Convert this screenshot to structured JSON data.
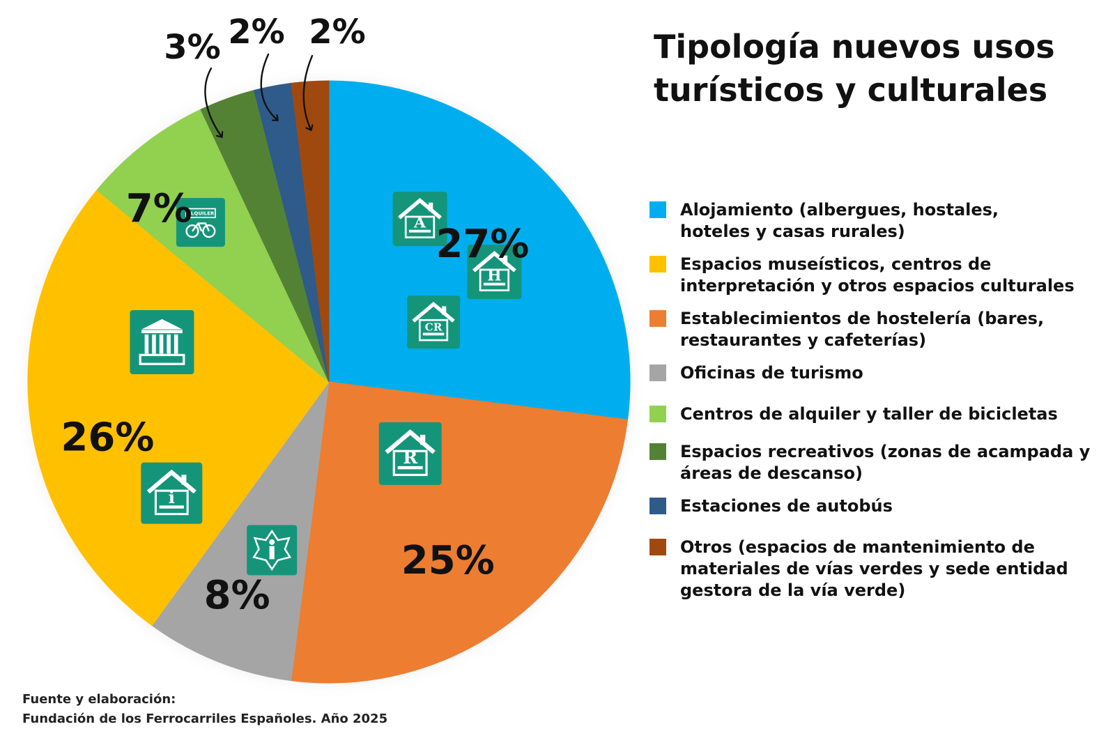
{
  "chart_data": {
    "type": "pie",
    "title": "Tipología nuevos usos turísticos y culturales",
    "title_lines": [
      "Tipología nuevos usos",
      "turísticos y culturales"
    ],
    "legend_position": "right",
    "slices": [
      {
        "label": "Alojamiento (albergues, hostales,\nhoteles y casas rurales)",
        "value": 27,
        "value_label": "27%",
        "color": "#00AEEF",
        "icons": [
          "albergue-icon",
          "casa-rural-icon",
          "hostal-icon"
        ]
      },
      {
        "label": "Establecimientos de hostelería (bares,\nrestaurantes y cafeterías)",
        "value": 25,
        "value_label": "25%",
        "color": "#ED7D31",
        "icons": [
          "restaurante-icon"
        ]
      },
      {
        "label": "Oficinas de turismo",
        "value": 8,
        "value_label": "8%",
        "color": "#A5A5A5",
        "icons": [
          "info-icon"
        ]
      },
      {
        "label": "Espacios museísticos, centros de\ninterpretación y otros espacios culturales",
        "value": 26,
        "value_label": "26%",
        "color": "#FFC000",
        "icons": [
          "museo-icon",
          "centro-interpretacion-icon"
        ]
      },
      {
        "label": "Centros de alquiler y taller de bicicletas",
        "value": 7,
        "value_label": "7%",
        "color": "#92D050",
        "icons": [
          "alquiler-bicicletas-icon"
        ],
        "icon_text": "ALQUILER"
      },
      {
        "label": "Espacios recreativos (zonas de acampada y\náreas de descanso)",
        "value": 3,
        "value_label": "3%",
        "color": "#548235",
        "icons": []
      },
      {
        "label": "Estaciones de autobús",
        "value": 2,
        "value_label": "2%",
        "color": "#2E5B8A",
        "icons": []
      },
      {
        "label": "Otros (espacios de mantenimiento de\nmateriales de vías verdes y sede entidad\ngestora de la vía verde)",
        "value": 2,
        "value_label": "2%",
        "color": "#A0490F",
        "icons": []
      }
    ],
    "legend_order": [
      0,
      3,
      1,
      2,
      4,
      5,
      6,
      7
    ]
  },
  "source": {
    "line1": "Fuente y elaboración:",
    "line2": "Fundación de los Ferrocarriles Españoles. Año 2025"
  },
  "colors": {
    "icon_bg": "#14957A",
    "label_text": "#111111"
  }
}
